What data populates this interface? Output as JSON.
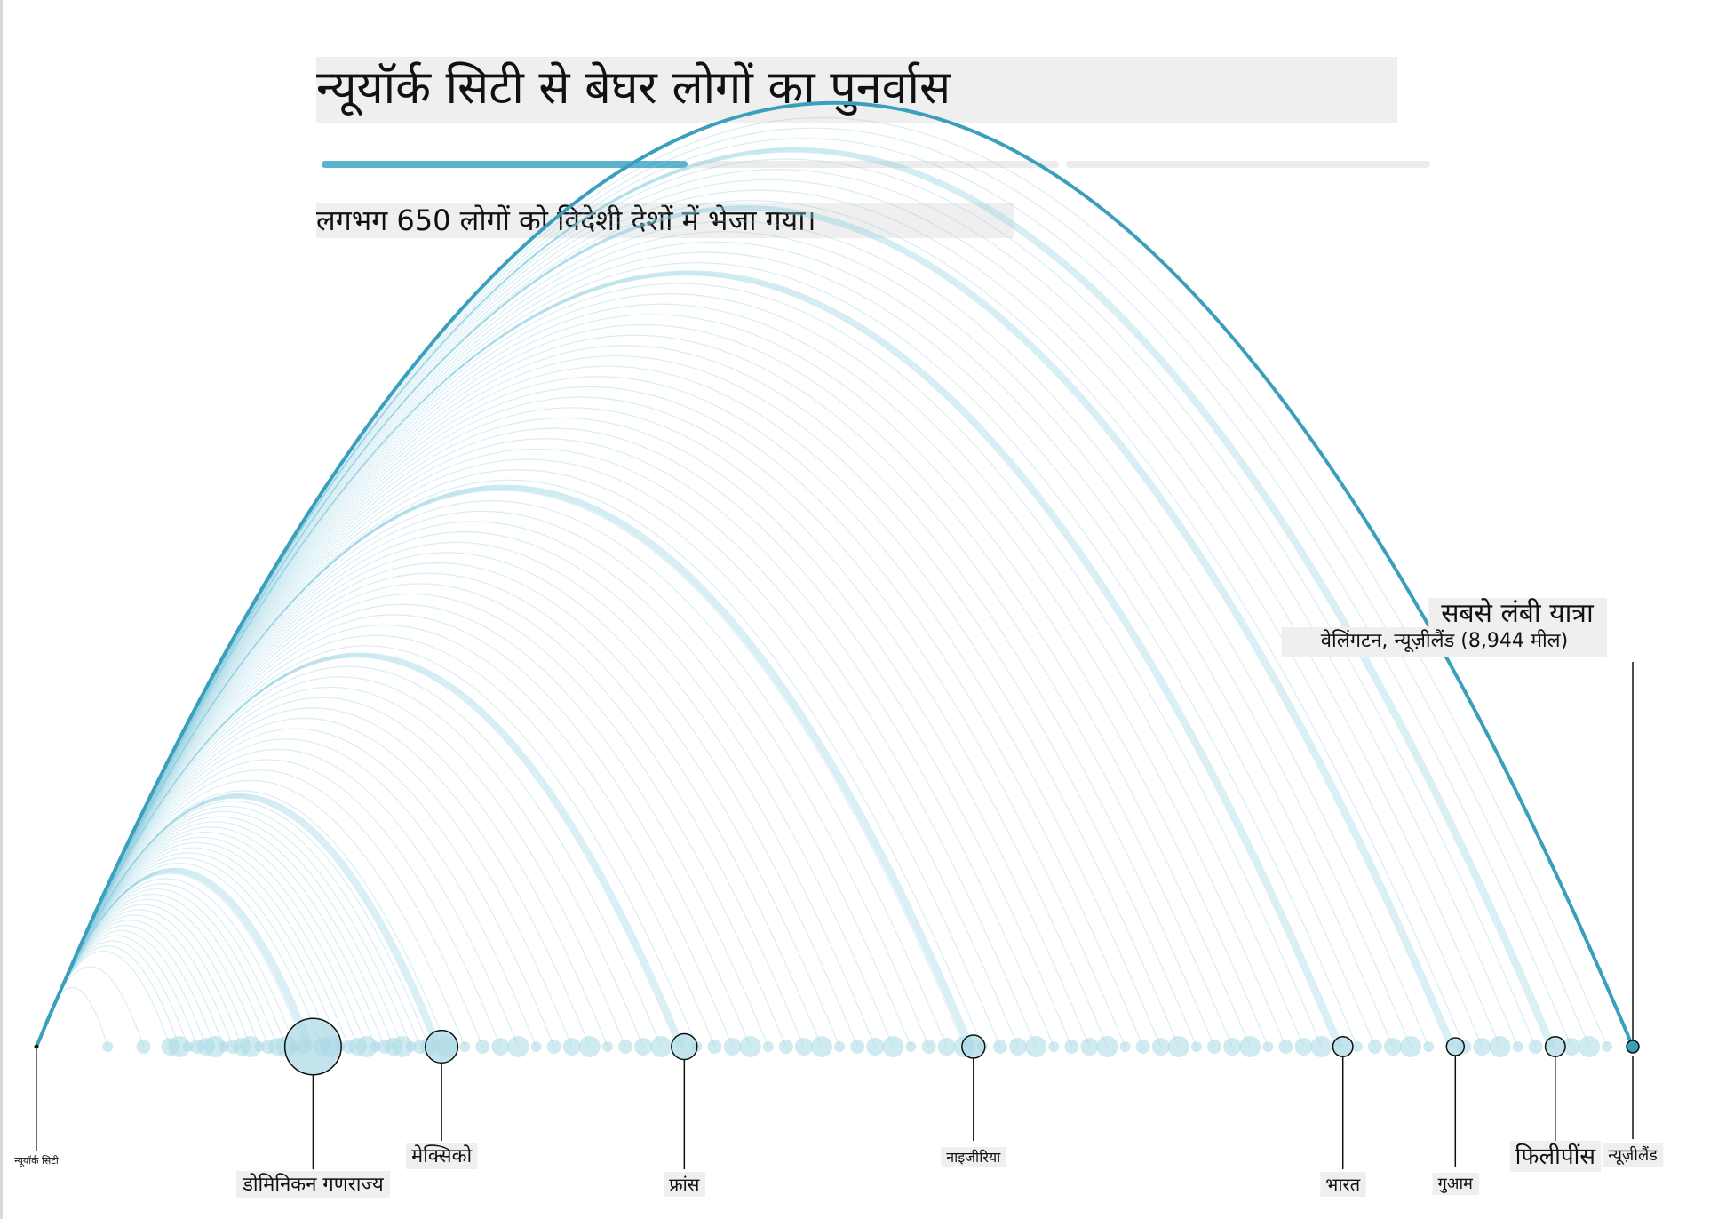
{
  "title": "न्यूयॉर्क सिटी से बेघर लोगों का पुनर्वास",
  "subtitle": "लगभग 650 लोगों को विदेशी देशों में भेजा गया।",
  "progress": [
    {
      "filled": 1,
      "color": "#5bb2cc"
    },
    {
      "filled": 0,
      "color": "#ececec"
    },
    {
      "filled": 0,
      "color": "#ececec"
    }
  ],
  "colors": {
    "accent": "#3a9fbc",
    "arc": "#8fcfe0",
    "dot": "#a9d9e6",
    "ring": "#111111"
  },
  "chart_data": {
    "type": "arc",
    "origin": "न्यूयॉर्क सिटी",
    "annotation": {
      "title": "सबसे लंबी यात्रा",
      "text": "वेलिंगटन, न्यूज़ीलैंड (8,944 मील)"
    },
    "units": "mi",
    "x_range": [
      0,
      8944
    ],
    "destinations": [
      {
        "name": "डोमिनिकन गणराज्य",
        "distance": 1550,
        "count": 120,
        "ring": true
      },
      {
        "name": "मेक्सिको",
        "distance": 2270,
        "count": 40,
        "ring": true
      },
      {
        "name": "फ्रांस",
        "distance": 3630,
        "count": 25,
        "ring": true
      },
      {
        "name": "नाइजीरिया",
        "distance": 5250,
        "count": 20,
        "ring": true
      },
      {
        "name": "भारत",
        "distance": 7320,
        "count": 15,
        "ring": true
      },
      {
        "name": "फिलीपींस",
        "distance": 8510,
        "count": 15,
        "ring": true
      },
      {
        "name": "गुआम",
        "distance": 7950,
        "count": 10,
        "ring": true
      },
      {
        "name": "न्यूज़ीलैंड",
        "distance": 8944,
        "count": 1,
        "ring": true,
        "highlight": true
      }
    ],
    "other_distances": [
      400,
      600,
      750,
      800,
      850,
      900,
      950,
      1000,
      1050,
      1100,
      1150,
      1200,
      1250,
      1300,
      1350,
      1400,
      1450,
      1500,
      1600,
      1650,
      1700,
      1750,
      1800,
      1850,
      1900,
      1950,
      2000,
      2050,
      2100,
      2150,
      2200,
      2300,
      2400,
      2500,
      2600,
      2700,
      2800,
      2900,
      3000,
      3100,
      3200,
      3300,
      3400,
      3500,
      3700,
      3800,
      3900,
      4000,
      4100,
      4200,
      4300,
      4400,
      4500,
      4600,
      4700,
      4800,
      4900,
      5000,
      5100,
      5200,
      5300,
      5400,
      5500,
      5600,
      5700,
      5800,
      5900,
      6000,
      6100,
      6200,
      6300,
      6400,
      6500,
      6600,
      6700,
      6800,
      6900,
      7000,
      7100,
      7200,
      7400,
      7500,
      7600,
      7700,
      7800,
      8000,
      8100,
      8200,
      8300,
      8400,
      8600,
      8700,
      8800
    ]
  }
}
